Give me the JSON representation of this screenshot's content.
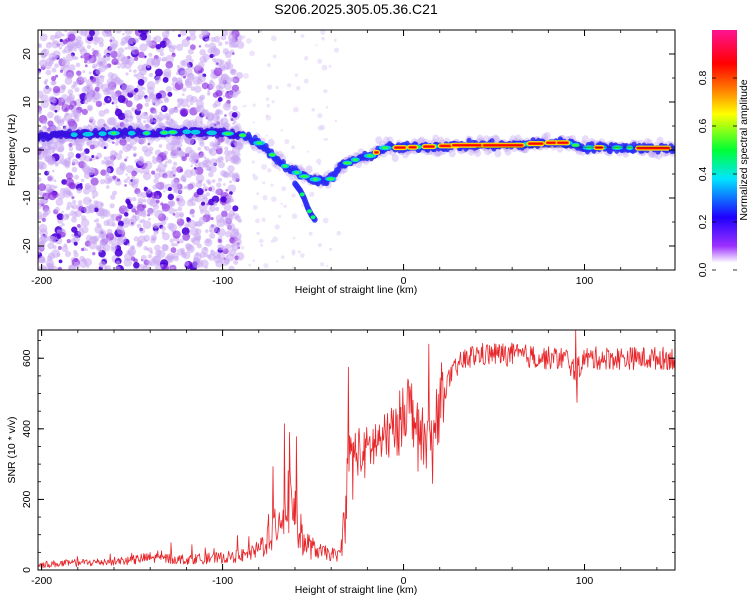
{
  "figure_title": "S206.2025.305.05.36.C21",
  "colorbar": {
    "label": "Normalized spectral amplitude",
    "ticks": [
      0.0,
      0.2,
      0.4,
      0.6,
      0.8
    ],
    "tick_labels": [
      "0.0",
      "0.2",
      "0.4",
      "0.6",
      "0.8"
    ],
    "range": [
      0,
      1
    ],
    "colors": [
      "#ffffff",
      "#9b30ff",
      "#1e00ff",
      "#00e5ff",
      "#00ff33",
      "#ffff00",
      "#ff7f00",
      "#ff0000",
      "#ff1493"
    ]
  },
  "chart_data": [
    {
      "type": "heatmap",
      "title": "S206.2025.305.05.36.C21",
      "xlabel": "Height of straight line (km)",
      "ylabel": "Frequency (Hz)",
      "xlim": [
        -202,
        150
      ],
      "ylim": [
        -25,
        25
      ],
      "xticks": [
        -200,
        -100,
        0,
        100
      ],
      "xtick_labels": [
        "-200",
        "-100",
        "0",
        "100"
      ],
      "yticks": [
        -20,
        -10,
        0,
        10,
        20
      ],
      "ytick_labels": [
        "-20",
        "-10",
        "0",
        "10",
        "20"
      ],
      "colorbar_label": "Normalized spectral amplitude",
      "ridge": {
        "x": [
          -200,
          -180,
          -160,
          -140,
          -120,
          -100,
          -90,
          -85,
          -80,
          -75,
          -70,
          -65,
          -60,
          -55,
          -50,
          -45,
          -40,
          -35,
          -30,
          -25,
          -20,
          -15,
          -10,
          -5,
          0,
          20,
          40,
          60,
          80,
          90,
          100,
          120,
          150
        ],
        "y": [
          3,
          3.2,
          3.5,
          3.5,
          3.8,
          3.5,
          3.2,
          2.5,
          1.5,
          0,
          -2,
          -3.5,
          -4.5,
          -5.5,
          -6,
          -6.5,
          -6,
          -3.5,
          -2.5,
          -1.8,
          -1.5,
          -0.5,
          0.5,
          0.5,
          0.5,
          0.8,
          1,
          1,
          1.5,
          1.5,
          0.5,
          0.5,
          0.3
        ]
      },
      "secondary_branch": {
        "x": [
          -60,
          -57,
          -55,
          -53,
          -51,
          -49
        ],
        "y": [
          -7,
          -8.5,
          -10,
          -12,
          -13.5,
          -14.5
        ]
      }
    },
    {
      "type": "line",
      "xlabel": "Height of straight line (km)",
      "ylabel": "SNR (10 * v/v)",
      "xlim": [
        -202,
        150
      ],
      "ylim": [
        0,
        680
      ],
      "xticks": [
        -200,
        -100,
        0,
        100
      ],
      "xtick_labels": [
        "-200",
        "-100",
        "0",
        "100"
      ],
      "yticks": [
        0,
        200,
        400,
        600
      ],
      "ytick_labels": [
        "0",
        "200",
        "400",
        "600"
      ],
      "color": "#e8262a",
      "series": [
        {
          "name": "SNR",
          "x": [
            -202,
            -190,
            -180,
            -170,
            -160,
            -150,
            -140,
            -130,
            -120,
            -110,
            -100,
            -90,
            -85,
            -80,
            -75,
            -70,
            -65,
            -62,
            -60,
            -58,
            -55,
            -50,
            -45,
            -40,
            -35,
            -32,
            -30,
            -28,
            -25,
            -22,
            -20,
            -18,
            -15,
            -12,
            -10,
            -8,
            -5,
            -2,
            0,
            5,
            10,
            15,
            20,
            25,
            30,
            35,
            40,
            50,
            60,
            70,
            80,
            90,
            95,
            100,
            110,
            120,
            130,
            140,
            150
          ],
          "y": [
            15,
            18,
            20,
            22,
            25,
            28,
            35,
            32,
            30,
            32,
            35,
            40,
            45,
            60,
            90,
            140,
            190,
            210,
            170,
            120,
            80,
            60,
            50,
            45,
            40,
            180,
            320,
            330,
            340,
            320,
            340,
            350,
            360,
            370,
            360,
            400,
            380,
            420,
            480,
            450,
            380,
            360,
            470,
            540,
            580,
            600,
            610,
            612,
            610,
            605,
            600,
            600,
            560,
            600,
            600,
            600,
            600,
            600,
            600
          ]
        }
      ]
    }
  ]
}
